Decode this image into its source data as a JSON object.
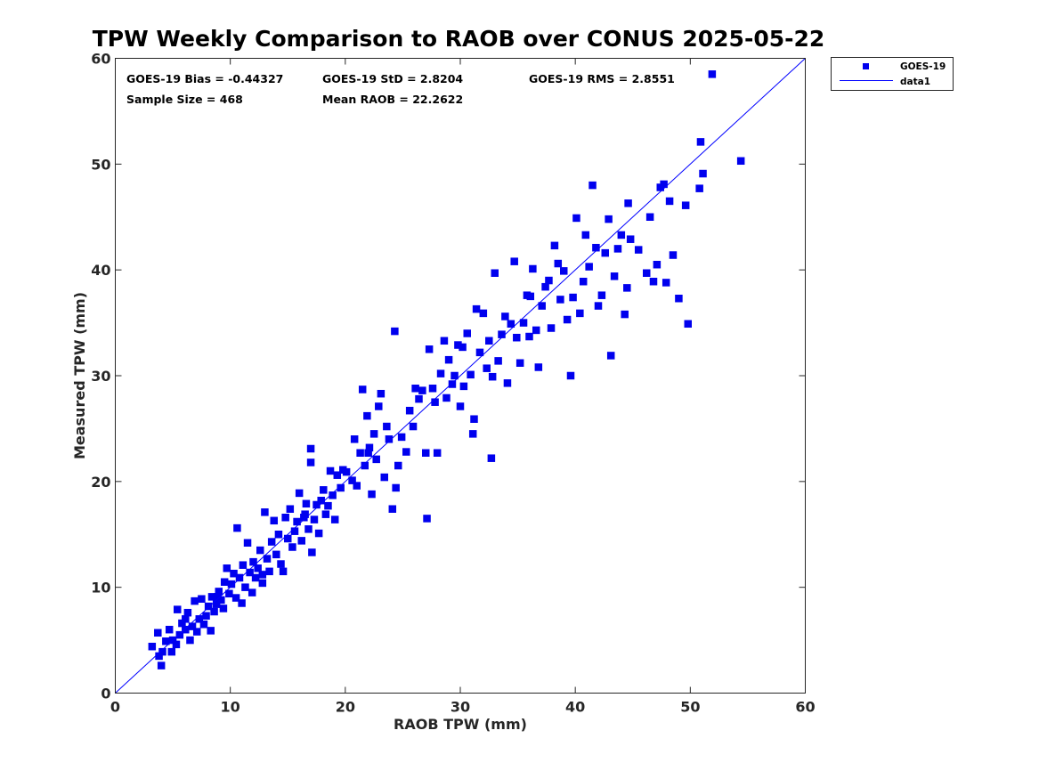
{
  "chart_data": {
    "type": "scatter",
    "title": "TPW Weekly Comparison to RAOB over CONUS 2025-05-22",
    "xlabel": "RAOB TPW (mm)",
    "ylabel": "Measured TPW (mm)",
    "xlim": [
      0,
      60
    ],
    "ylim": [
      0,
      60
    ],
    "xticks": [
      "0",
      "10",
      "20",
      "30",
      "40",
      "50",
      "60"
    ],
    "yticks": [
      "0",
      "10",
      "20",
      "30",
      "40",
      "50",
      "60"
    ],
    "grid": false,
    "legend_position": "outside-top-right",
    "stats": {
      "bias": "GOES-19 Bias = -0.44327",
      "std": "GOES-19 StD = 2.8204",
      "rms": "GOES-19 RMS = 2.8551",
      "sample_size": "Sample Size = 468",
      "mean_raob": "Mean RAOB = 22.2622"
    },
    "series": [
      {
        "name": "GOES-19",
        "marker": "square",
        "color": "#0000ee",
        "points": [
          [
            3.2,
            4.4
          ],
          [
            3.7,
            5.7
          ],
          [
            3.8,
            3.5
          ],
          [
            4.0,
            2.6
          ],
          [
            4.1,
            3.9
          ],
          [
            4.4,
            4.9
          ],
          [
            4.7,
            6.0
          ],
          [
            4.9,
            3.9
          ],
          [
            5.0,
            5.0
          ],
          [
            5.3,
            4.6
          ],
          [
            5.4,
            7.9
          ],
          [
            5.6,
            5.5
          ],
          [
            5.8,
            6.6
          ],
          [
            6.1,
            6.0
          ],
          [
            6.3,
            7.6
          ],
          [
            6.5,
            5.0
          ],
          [
            6.7,
            6.3
          ],
          [
            6.9,
            8.7
          ],
          [
            7.1,
            5.8
          ],
          [
            7.3,
            7.0
          ],
          [
            7.5,
            8.9
          ],
          [
            7.7,
            6.5
          ],
          [
            7.9,
            7.3
          ],
          [
            8.1,
            8.2
          ],
          [
            8.3,
            5.9
          ],
          [
            8.4,
            9.1
          ],
          [
            8.6,
            7.7
          ],
          [
            8.8,
            8.4
          ],
          [
            9.0,
            9.6
          ],
          [
            9.2,
            8.8
          ],
          [
            9.4,
            8.0
          ],
          [
            9.5,
            10.5
          ],
          [
            9.7,
            11.8
          ],
          [
            9.9,
            9.4
          ],
          [
            10.1,
            10.3
          ],
          [
            10.3,
            11.3
          ],
          [
            10.5,
            9.0
          ],
          [
            10.6,
            15.6
          ],
          [
            10.8,
            10.9
          ],
          [
            11.0,
            8.5
          ],
          [
            11.1,
            12.1
          ],
          [
            11.3,
            10.0
          ],
          [
            11.5,
            14.2
          ],
          [
            11.7,
            11.4
          ],
          [
            11.9,
            9.5
          ],
          [
            12.0,
            12.4
          ],
          [
            12.2,
            10.9
          ],
          [
            12.4,
            11.8
          ],
          [
            12.6,
            13.5
          ],
          [
            12.8,
            10.4
          ],
          [
            13.0,
            17.1
          ],
          [
            13.2,
            12.7
          ],
          [
            13.4,
            11.5
          ],
          [
            13.6,
            14.3
          ],
          [
            13.8,
            16.3
          ],
          [
            14.0,
            13.1
          ],
          [
            14.2,
            15.0
          ],
          [
            14.4,
            12.2
          ],
          [
            14.6,
            11.5
          ],
          [
            14.8,
            16.6
          ],
          [
            15.0,
            14.6
          ],
          [
            15.2,
            17.4
          ],
          [
            15.4,
            13.8
          ],
          [
            15.6,
            15.3
          ],
          [
            15.8,
            16.2
          ],
          [
            16.0,
            18.9
          ],
          [
            16.2,
            14.4
          ],
          [
            16.4,
            16.6
          ],
          [
            16.6,
            17.9
          ],
          [
            16.8,
            15.5
          ],
          [
            17.0,
            23.1
          ],
          [
            17.1,
            13.3
          ],
          [
            17.0,
            21.8
          ],
          [
            17.3,
            16.4
          ],
          [
            17.5,
            17.8
          ],
          [
            17.7,
            15.1
          ],
          [
            17.9,
            18.2
          ],
          [
            18.1,
            19.2
          ],
          [
            18.3,
            16.9
          ],
          [
            18.5,
            17.7
          ],
          [
            18.7,
            21.0
          ],
          [
            18.9,
            18.7
          ],
          [
            19.1,
            16.4
          ],
          [
            19.3,
            20.6
          ],
          [
            19.6,
            19.4
          ],
          [
            19.8,
            21.1
          ],
          [
            20.1,
            20.9
          ],
          [
            20.6,
            20.1
          ],
          [
            20.8,
            24.0
          ],
          [
            21.0,
            19.6
          ],
          [
            21.3,
            22.7
          ],
          [
            21.5,
            28.7
          ],
          [
            21.7,
            21.5
          ],
          [
            21.9,
            26.2
          ],
          [
            22.1,
            23.2
          ],
          [
            22.3,
            18.8
          ],
          [
            22.5,
            24.5
          ],
          [
            22.7,
            22.1
          ],
          [
            22.9,
            27.1
          ],
          [
            23.1,
            28.3
          ],
          [
            23.4,
            20.4
          ],
          [
            23.6,
            25.2
          ],
          [
            23.8,
            24.0
          ],
          [
            24.1,
            17.4
          ],
          [
            24.3,
            34.2
          ],
          [
            24.4,
            19.4
          ],
          [
            24.6,
            21.5
          ],
          [
            24.9,
            24.2
          ],
          [
            25.3,
            22.8
          ],
          [
            25.6,
            26.7
          ],
          [
            25.9,
            25.2
          ],
          [
            26.1,
            28.8
          ],
          [
            26.4,
            27.8
          ],
          [
            26.7,
            28.6
          ],
          [
            27.0,
            22.7
          ],
          [
            27.1,
            16.5
          ],
          [
            27.3,
            32.5
          ],
          [
            27.6,
            28.8
          ],
          [
            27.8,
            27.5
          ],
          [
            28.0,
            22.7
          ],
          [
            28.3,
            30.2
          ],
          [
            28.6,
            33.3
          ],
          [
            28.8,
            27.9
          ],
          [
            29.0,
            31.5
          ],
          [
            29.3,
            29.2
          ],
          [
            29.5,
            30.0
          ],
          [
            29.8,
            32.9
          ],
          [
            30.0,
            27.1
          ],
          [
            30.3,
            29.0
          ],
          [
            30.6,
            34.0
          ],
          [
            30.9,
            30.1
          ],
          [
            31.1,
            24.5
          ],
          [
            31.2,
            25.9
          ],
          [
            31.4,
            36.3
          ],
          [
            31.7,
            32.2
          ],
          [
            32.0,
            35.9
          ],
          [
            32.3,
            30.7
          ],
          [
            32.5,
            33.3
          ],
          [
            32.7,
            22.2
          ],
          [
            32.8,
            29.9
          ],
          [
            33.0,
            39.7
          ],
          [
            33.3,
            31.4
          ],
          [
            33.6,
            33.9
          ],
          [
            33.9,
            35.6
          ],
          [
            34.1,
            29.3
          ],
          [
            34.4,
            34.9
          ],
          [
            34.7,
            40.8
          ],
          [
            34.9,
            33.6
          ],
          [
            35.2,
            31.2
          ],
          [
            35.5,
            35.0
          ],
          [
            35.8,
            37.6
          ],
          [
            36.0,
            33.7
          ],
          [
            36.3,
            40.1
          ],
          [
            36.6,
            34.3
          ],
          [
            36.8,
            30.8
          ],
          [
            37.1,
            36.6
          ],
          [
            37.4,
            38.4
          ],
          [
            37.7,
            39.0
          ],
          [
            37.9,
            34.5
          ],
          [
            38.2,
            42.3
          ],
          [
            38.5,
            40.6
          ],
          [
            38.7,
            37.2
          ],
          [
            39.0,
            39.9
          ],
          [
            39.3,
            35.3
          ],
          [
            39.6,
            30.0
          ],
          [
            39.8,
            37.4
          ],
          [
            40.1,
            44.9
          ],
          [
            40.4,
            35.9
          ],
          [
            40.7,
            38.9
          ],
          [
            40.9,
            43.3
          ],
          [
            41.2,
            40.3
          ],
          [
            41.5,
            48.0
          ],
          [
            41.8,
            42.1
          ],
          [
            42.0,
            36.6
          ],
          [
            42.3,
            37.6
          ],
          [
            42.6,
            41.6
          ],
          [
            42.9,
            44.8
          ],
          [
            43.1,
            31.9
          ],
          [
            43.4,
            39.4
          ],
          [
            43.7,
            42.0
          ],
          [
            44.0,
            43.3
          ],
          [
            44.3,
            35.8
          ],
          [
            44.5,
            38.3
          ],
          [
            44.6,
            46.3
          ],
          [
            44.8,
            42.9
          ],
          [
            45.5,
            41.9
          ],
          [
            46.2,
            39.7
          ],
          [
            46.5,
            45.0
          ],
          [
            46.8,
            38.9
          ],
          [
            47.1,
            40.5
          ],
          [
            47.4,
            47.8
          ],
          [
            47.7,
            48.1
          ],
          [
            47.9,
            38.8
          ],
          [
            48.2,
            46.5
          ],
          [
            48.5,
            41.4
          ],
          [
            49.0,
            37.3
          ],
          [
            49.6,
            46.1
          ],
          [
            49.8,
            34.9
          ],
          [
            50.8,
            47.7
          ],
          [
            50.9,
            52.1
          ],
          [
            51.1,
            49.1
          ],
          [
            51.9,
            58.5
          ],
          [
            54.4,
            50.3
          ],
          [
            16.5,
            16.9
          ],
          [
            12.8,
            11.2
          ],
          [
            22.0,
            22.7
          ],
          [
            30.2,
            32.7
          ],
          [
            36.1,
            37.5
          ],
          [
            6.1,
            7.0
          ],
          [
            8.9,
            9.1
          ]
        ]
      },
      {
        "name": "data1",
        "marker": "line",
        "color": "#0000ff",
        "points": [
          [
            0,
            0
          ],
          [
            60,
            60
          ]
        ]
      }
    ]
  }
}
